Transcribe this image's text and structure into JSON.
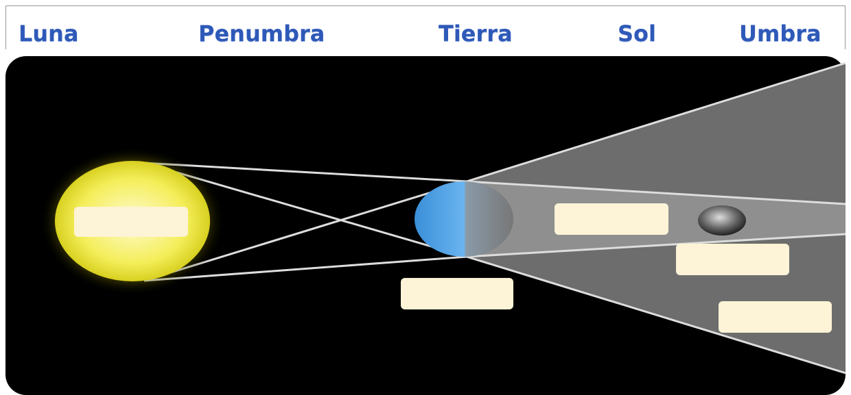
{
  "words": [
    "Luna",
    "Penumbra",
    "Tierra",
    "Sol",
    "Umbra"
  ]
}
